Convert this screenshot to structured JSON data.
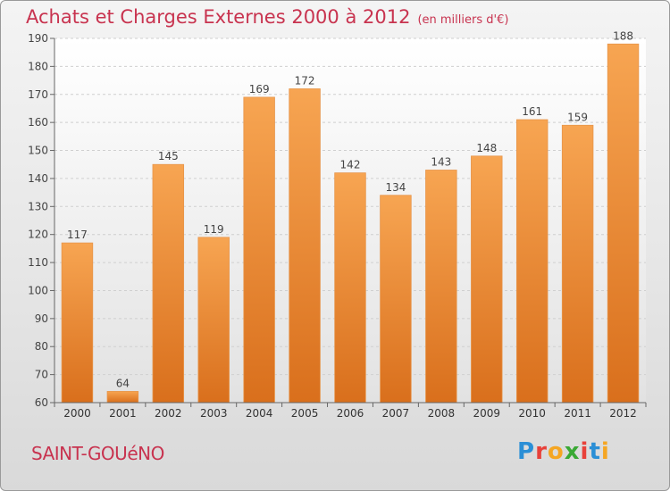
{
  "header": {
    "title": "Achats et Charges Externes 2000 à 2012",
    "subtitle": "(en milliers d'€)"
  },
  "footer": {
    "commune": "SAINT-GOUéNO",
    "logo_letters": [
      "P",
      "r",
      "o",
      "x",
      "i",
      "t",
      "i"
    ],
    "logo_colors": [
      "#2b8fd6",
      "#e8413a",
      "#f5a623",
      "#3aa935",
      "#e8413a",
      "#2b8fd6",
      "#f5a623"
    ]
  },
  "chart_data": {
    "type": "bar",
    "title": "Achats et Charges Externes 2000 à 2012",
    "subtitle": "(en milliers d'€)",
    "xlabel": "",
    "ylabel": "",
    "categories": [
      "2000",
      "2001",
      "2002",
      "2003",
      "2004",
      "2005",
      "2006",
      "2007",
      "2008",
      "2009",
      "2010",
      "2011",
      "2012"
    ],
    "values": [
      117,
      64,
      145,
      119,
      169,
      172,
      142,
      134,
      143,
      148,
      161,
      159,
      188
    ],
    "ylim": [
      60,
      190
    ],
    "yticks": [
      60,
      70,
      80,
      90,
      100,
      110,
      120,
      130,
      140,
      150,
      160,
      170,
      180,
      190
    ],
    "grid": true,
    "bar_color_top": "#f7a552",
    "bar_color_bottom": "#d96f1c"
  }
}
